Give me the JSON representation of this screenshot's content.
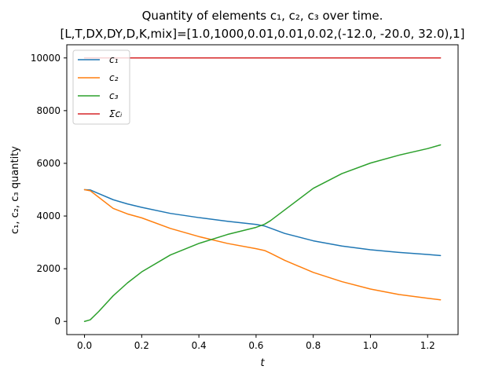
{
  "chart_data": {
    "type": "line",
    "title_line1": "Quantity of elements c₁, c₂, c₃ over time.",
    "title_line2": "[L,T,DX,DY,D,K,mix]=[1.0,1000,0.01,0.01,0.02,(-12.0, -20.0, 32.0),1]",
    "xlabel": "t",
    "ylabel": "c₁, c₂, c₃ quantity",
    "xlim": [
      -0.062,
      1.3065
    ],
    "ylim": [
      -500,
      10500
    ],
    "xticks": [
      0.0,
      0.2,
      0.4,
      0.6,
      0.8,
      1.0,
      1.2
    ],
    "xtick_labels": [
      "0.0",
      "0.2",
      "0.4",
      "0.6",
      "0.8",
      "1.0",
      "1.2"
    ],
    "yticks": [
      0,
      2000,
      4000,
      6000,
      8000,
      10000
    ],
    "ytick_labels": [
      "0",
      "2000",
      "4000",
      "6000",
      "8000",
      "10000"
    ],
    "grid": false,
    "legend_position": "upper-left",
    "series": [
      {
        "name": "c₁",
        "color": "#1f77b4",
        "x": [
          0.0,
          0.02,
          0.05,
          0.1,
          0.15,
          0.2,
          0.3,
          0.4,
          0.5,
          0.6,
          0.63,
          0.65,
          0.7,
          0.8,
          0.9,
          1.0,
          1.1,
          1.2,
          1.245
        ],
        "y": [
          5000,
          4990,
          4850,
          4620,
          4460,
          4330,
          4100,
          3940,
          3800,
          3680,
          3620,
          3540,
          3340,
          3060,
          2860,
          2720,
          2620,
          2540,
          2500
        ]
      },
      {
        "name": "c₂",
        "color": "#ff7f0e",
        "x": [
          0.0,
          0.02,
          0.05,
          0.1,
          0.15,
          0.2,
          0.3,
          0.4,
          0.5,
          0.6,
          0.63,
          0.65,
          0.7,
          0.8,
          0.9,
          1.0,
          1.1,
          1.2,
          1.245
        ],
        "y": [
          5000,
          4960,
          4710,
          4290,
          4080,
          3930,
          3530,
          3220,
          2960,
          2760,
          2690,
          2590,
          2320,
          1860,
          1510,
          1230,
          1020,
          880,
          820
        ]
      },
      {
        "name": "c₃",
        "color": "#2ca02c",
        "x": [
          0.0,
          0.02,
          0.05,
          0.1,
          0.15,
          0.2,
          0.3,
          0.4,
          0.5,
          0.6,
          0.63,
          0.65,
          0.7,
          0.8,
          0.9,
          1.0,
          1.1,
          1.2,
          1.245
        ],
        "y": [
          0,
          60,
          380,
          970,
          1460,
          1880,
          2520,
          2960,
          3300,
          3570,
          3690,
          3820,
          4230,
          5050,
          5610,
          6010,
          6310,
          6560,
          6700
        ]
      },
      {
        "name": "Σcᵢ",
        "color": "#d62728",
        "x": [
          0.0,
          1.245
        ],
        "y": [
          10000,
          10000
        ]
      }
    ]
  }
}
